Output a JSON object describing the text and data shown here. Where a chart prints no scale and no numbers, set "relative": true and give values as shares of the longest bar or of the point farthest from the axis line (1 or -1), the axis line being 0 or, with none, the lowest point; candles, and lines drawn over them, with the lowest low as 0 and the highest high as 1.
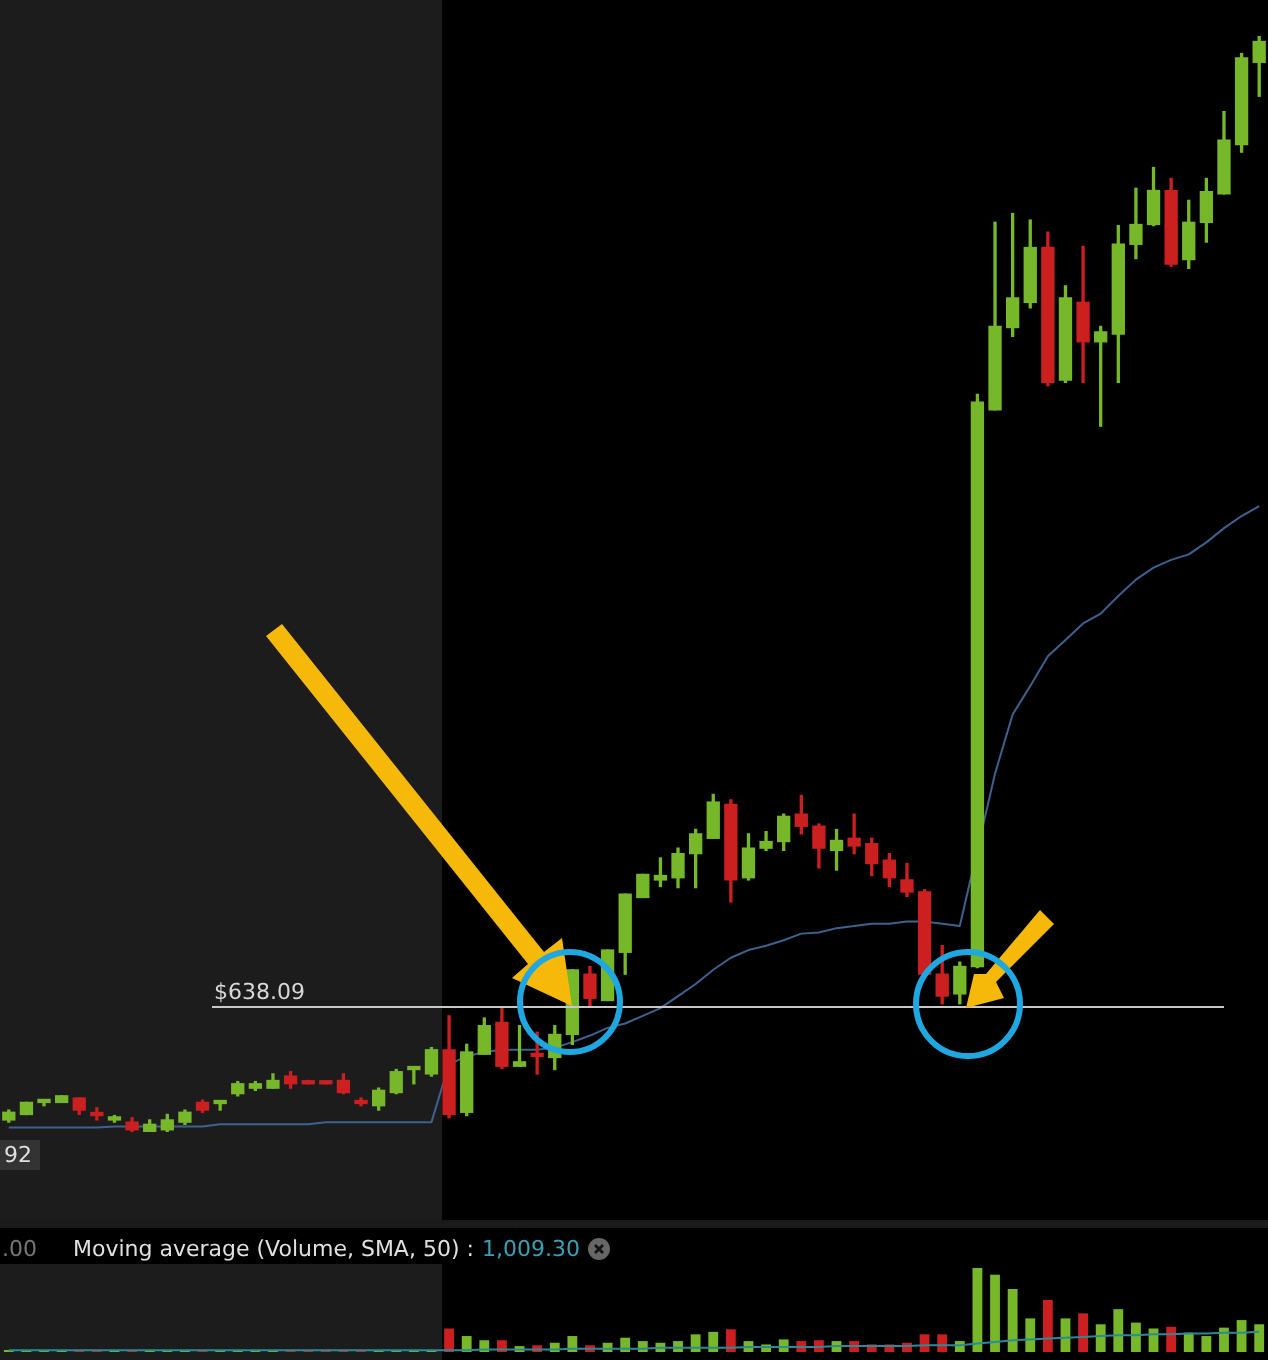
{
  "chart_data": [
    {
      "type": "candlestick",
      "relative": true,
      "legend": false,
      "grid": false,
      "categories": [
        null,
        null,
        null,
        null,
        null,
        null,
        null,
        null,
        null,
        null,
        null,
        null,
        null,
        null,
        null,
        null,
        null,
        null,
        null,
        null,
        null,
        null,
        null,
        null,
        null,
        null,
        null,
        null,
        null,
        null,
        null,
        null,
        null,
        null,
        null,
        null,
        null,
        null,
        null,
        null,
        null,
        null,
        null,
        null,
        null,
        null,
        null,
        null,
        null,
        null,
        null,
        null,
        null,
        null,
        null,
        null,
        null,
        null,
        null,
        null,
        null,
        null,
        null,
        null,
        null,
        null,
        null,
        null,
        null,
        null,
        null,
        null
      ],
      "ohlc": [
        [
          0.011,
          0.02,
          0.009,
          0.018
        ],
        [
          0.016,
          0.027,
          0.016,
          0.027
        ],
        [
          0.027,
          0.029,
          0.024,
          0.029
        ],
        [
          0.027,
          0.033,
          0.027,
          0.033
        ],
        [
          0.031,
          0.031,
          0.016,
          0.02
        ],
        [
          0.016,
          0.022,
          0.011,
          0.015
        ],
        [
          0.011,
          0.015,
          0.009,
          0.013
        ],
        [
          0.009,
          0.013,
          0.0,
          0.002
        ],
        [
          0.0,
          0.011,
          0.0,
          0.007
        ],
        [
          0.002,
          0.016,
          0.0,
          0.011
        ],
        [
          0.009,
          0.02,
          0.007,
          0.018
        ],
        [
          0.027,
          0.029,
          0.018,
          0.02
        ],
        [
          0.026,
          0.027,
          0.02,
          0.027
        ],
        [
          0.035,
          0.046,
          0.033,
          0.044
        ],
        [
          0.04,
          0.046,
          0.038,
          0.044
        ],
        [
          0.04,
          0.053,
          0.04,
          0.047
        ],
        [
          0.051,
          0.055,
          0.04,
          0.044
        ],
        [
          0.046,
          0.047,
          0.044,
          0.044
        ],
        [
          0.046,
          0.046,
          0.044,
          0.044
        ],
        [
          0.047,
          0.053,
          0.035,
          0.036
        ],
        [
          0.027,
          0.031,
          0.024,
          0.026
        ],
        [
          0.024,
          0.04,
          0.02,
          0.038
        ],
        [
          0.036,
          0.057,
          0.035,
          0.055
        ],
        [
          0.057,
          0.058,
          0.044,
          0.058
        ],
        [
          0.053,
          0.077,
          0.051,
          0.075
        ],
        [
          0.075,
          0.106,
          0.013,
          0.016
        ],
        [
          0.018,
          0.08,
          0.015,
          0.073
        ],
        [
          0.071,
          0.104,
          0.071,
          0.097
        ],
        [
          0.1,
          0.113,
          0.058,
          0.06
        ],
        [
          0.06,
          0.097,
          0.06,
          0.064
        ],
        [
          0.071,
          0.091,
          0.053,
          0.069
        ],
        [
          0.068,
          0.097,
          0.057,
          0.089
        ],
        [
          0.089,
          0.148,
          0.08,
          0.148
        ],
        [
          0.144,
          0.151,
          0.115,
          0.122
        ],
        [
          0.12,
          0.166,
          0.12,
          0.166
        ],
        [
          0.164,
          0.217,
          0.144,
          0.217
        ],
        [
          0.214,
          0.235,
          0.214,
          0.235
        ],
        [
          0.23,
          0.25,
          0.224,
          0.234
        ],
        [
          0.232,
          0.259,
          0.223,
          0.254
        ],
        [
          0.254,
          0.276,
          0.223,
          0.272
        ],
        [
          0.268,
          0.308,
          0.268,
          0.301
        ],
        [
          0.299,
          0.303,
          0.21,
          0.23
        ],
        [
          0.232,
          0.272,
          0.23,
          0.259
        ],
        [
          0.259,
          0.274,
          0.257,
          0.265
        ],
        [
          0.265,
          0.29,
          0.257,
          0.288
        ],
        [
          0.29,
          0.307,
          0.272,
          0.279
        ],
        [
          0.279,
          0.281,
          0.241,
          0.259
        ],
        [
          0.257,
          0.276,
          0.239,
          0.266
        ],
        [
          0.268,
          0.29,
          0.254,
          0.261
        ],
        [
          0.263,
          0.268,
          0.234,
          0.245
        ],
        [
          0.248,
          0.254,
          0.224,
          0.232
        ],
        [
          0.23,
          0.245,
          0.215,
          0.219
        ],
        [
          0.219,
          0.221,
          0.142,
          0.144
        ],
        [
          0.144,
          0.17,
          0.117,
          0.124
        ],
        [
          0.126,
          0.155,
          0.117,
          0.151
        ],
        [
          0.151,
          0.673,
          0.15,
          0.666
        ],
        [
          0.659,
          0.83,
          0.659,
          0.735
        ],
        [
          0.734,
          0.838,
          0.726,
          0.761
        ],
        [
          0.757,
          0.832,
          0.752,
          0.807
        ],
        [
          0.807,
          0.821,
          0.681,
          0.684
        ],
        [
          0.686,
          0.772,
          0.684,
          0.761
        ],
        [
          0.757,
          0.808,
          0.684,
          0.721
        ],
        [
          0.721,
          0.735,
          0.644,
          0.73
        ],
        [
          0.728,
          0.827,
          0.684,
          0.81
        ],
        [
          0.81,
          0.861,
          0.797,
          0.828
        ],
        [
          0.828,
          0.88,
          0.827,
          0.859
        ],
        [
          0.859,
          0.87,
          0.79,
          0.792
        ],
        [
          0.796,
          0.85,
          0.788,
          0.83
        ],
        [
          0.83,
          0.87,
          0.812,
          0.858
        ],
        [
          0.856,
          0.931,
          0.856,
          0.905
        ],
        [
          0.901,
          0.984,
          0.894,
          0.98
        ],
        [
          0.976,
          1.0,
          0.945,
          0.995
        ]
      ],
      "colors": [
        "#76b82a",
        "#76b82a",
        "#76b82a",
        "#76b82a",
        "#cc1f1f",
        "#cc1f1f",
        "#76b82a",
        "#cc1f1f",
        "#76b82a",
        "#76b82a",
        "#76b82a",
        "#cc1f1f",
        "#76b82a",
        "#76b82a",
        "#76b82a",
        "#76b82a",
        "#cc1f1f",
        "#cc1f1f",
        "#cc1f1f",
        "#cc1f1f",
        "#cc1f1f",
        "#76b82a",
        "#76b82a",
        "#76b82a",
        "#76b82a",
        "#cc1f1f",
        "#76b82a",
        "#76b82a",
        "#cc1f1f",
        "#76b82a",
        "#cc1f1f",
        "#76b82a",
        "#76b82a",
        "#cc1f1f",
        "#76b82a",
        "#76b82a",
        "#76b82a",
        "#76b82a",
        "#76b82a",
        "#76b82a",
        "#76b82a",
        "#cc1f1f",
        "#76b82a",
        "#76b82a",
        "#76b82a",
        "#cc1f1f",
        "#cc1f1f",
        "#76b82a",
        "#cc1f1f",
        "#cc1f1f",
        "#cc1f1f",
        "#cc1f1f",
        "#cc1f1f",
        "#cc1f1f",
        "#76b82a",
        "#76b82a",
        "#76b82a",
        "#76b82a",
        "#76b82a",
        "#cc1f1f",
        "#76b82a",
        "#cc1f1f",
        "#76b82a",
        "#76b82a",
        "#76b82a",
        "#76b82a",
        "#cc1f1f",
        "#76b82a",
        "#76b82a",
        "#76b82a",
        "#76b82a",
        "#76b82a"
      ],
      "series": [
        {
          "type": "line",
          "color": "#3d6290",
          "values": [
            0.004,
            0.004,
            0.004,
            0.004,
            0.004,
            0.004,
            0.005,
            0.005,
            0.005,
            0.005,
            0.005,
            0.005,
            0.007,
            0.007,
            0.007,
            0.007,
            0.007,
            0.007,
            0.009,
            0.009,
            0.009,
            0.009,
            0.009,
            0.009,
            0.009,
            0.062,
            0.069,
            0.073,
            0.075,
            0.075,
            0.075,
            0.077,
            0.082,
            0.088,
            0.095,
            0.099,
            0.106,
            0.113,
            0.124,
            0.135,
            0.148,
            0.159,
            0.166,
            0.17,
            0.175,
            0.181,
            0.182,
            0.186,
            0.188,
            0.19,
            0.19,
            0.192,
            0.192,
            0.19,
            0.188,
            null,
            0.327,
            0.381,
            0.407,
            0.434,
            0.449,
            0.464,
            0.473,
            0.489,
            0.504,
            0.515,
            0.522,
            0.527,
            0.538,
            0.551,
            0.562,
            0.571
          ]
        }
      ],
      "ref_lines": [
        {
          "axis": "y",
          "value": 0.115,
          "color": "#c8c8c8"
        }
      ],
      "annotations": [
        {
          "text": "$638.09",
          "y": 0.115
        },
        "92"
      ]
    },
    {
      "type": "bar",
      "relative": true,
      "legend": false,
      "grid": false,
      "title": "Moving average (Volume, SMA, 50) :",
      "subtitle": "1,009.30",
      "annotations": [
        ".00"
      ],
      "categories": [
        null,
        null,
        null,
        null,
        null,
        null,
        null,
        null,
        null,
        null,
        null,
        null,
        null,
        null,
        null,
        null,
        null,
        null,
        null,
        null,
        null,
        null,
        null,
        null,
        null,
        null,
        null,
        null,
        null,
        null,
        null,
        null,
        null,
        null,
        null,
        null,
        null,
        null,
        null,
        null,
        null,
        null,
        null,
        null,
        null,
        null,
        null,
        null,
        null,
        null,
        null,
        null,
        null,
        null,
        null,
        null,
        null,
        null,
        null,
        null,
        null,
        null,
        null,
        null,
        null,
        null,
        null,
        null,
        null,
        null,
        null,
        null
      ],
      "series": [
        {
          "colors": [
            "#76b82a",
            "#76b82a",
            "#76b82a",
            "#76b82a",
            "#cc1f1f",
            "#cc1f1f",
            "#76b82a",
            "#cc1f1f",
            "#76b82a",
            "#76b82a",
            "#76b82a",
            "#cc1f1f",
            "#76b82a",
            "#76b82a",
            "#76b82a",
            "#76b82a",
            "#cc1f1f",
            "#cc1f1f",
            "#cc1f1f",
            "#cc1f1f",
            "#cc1f1f",
            "#76b82a",
            "#76b82a",
            "#76b82a",
            "#76b82a",
            "#cc1f1f",
            "#76b82a",
            "#76b82a",
            "#cc1f1f",
            "#76b82a",
            "#cc1f1f",
            "#76b82a",
            "#76b82a",
            "#cc1f1f",
            "#76b82a",
            "#76b82a",
            "#76b82a",
            "#76b82a",
            "#76b82a",
            "#76b82a",
            "#76b82a",
            "#cc1f1f",
            "#76b82a",
            "#76b82a",
            "#76b82a",
            "#cc1f1f",
            "#cc1f1f",
            "#76b82a",
            "#cc1f1f",
            "#cc1f1f",
            "#cc1f1f",
            "#cc1f1f",
            "#cc1f1f",
            "#cc1f1f",
            "#76b82a",
            "#76b82a",
            "#76b82a",
            "#76b82a",
            "#76b82a",
            "#cc1f1f",
            "#76b82a",
            "#cc1f1f",
            "#76b82a",
            "#76b82a",
            "#76b82a",
            "#76b82a",
            "#cc1f1f",
            "#76b82a",
            "#76b82a",
            "#76b82a",
            "#76b82a",
            "#76b82a"
          ],
          "values": [
            0,
            0,
            0,
            0,
            0,
            0,
            0,
            0,
            0,
            0,
            0,
            0,
            0,
            0,
            0,
            0,
            0,
            0,
            0,
            0,
            0,
            0,
            0,
            0,
            0,
            0.28,
            0.19,
            0.14,
            0.14,
            0.07,
            0.08,
            0.11,
            0.19,
            0.08,
            0.11,
            0.17,
            0.13,
            0.11,
            0.13,
            0.21,
            0.24,
            0.27,
            0.13,
            0.09,
            0.15,
            0.13,
            0.14,
            0.13,
            0.13,
            0.09,
            0.09,
            0.11,
            0.21,
            0.21,
            0.13,
            1,
            0.92,
            0.75,
            0.4,
            0.62,
            0.4,
            0.46,
            0.33,
            0.51,
            0.35,
            0.28,
            0.3,
            0.23,
            0.19,
            0.29,
            0.38,
            0.33
          ]
        },
        {
          "type": "line",
          "color": "#2a8a9a",
          "values": [
            0.02,
            0.02,
            0.02,
            0.02,
            0.02,
            0.02,
            0.02,
            0.02,
            0.02,
            0.02,
            0.02,
            0.02,
            0.02,
            0.02,
            0.02,
            0.02,
            0.02,
            0.02,
            0.02,
            0.02,
            0.02,
            0.02,
            0.02,
            0.02,
            0.02,
            0.02,
            0.02,
            0.03,
            0.03,
            0.03,
            0.03,
            0.03,
            0.04,
            0.04,
            0.04,
            0.04,
            0.04,
            0.05,
            0.05,
            0.05,
            0.05,
            0.05,
            0.06,
            0.06,
            0.06,
            0.06,
            0.06,
            0.07,
            0.07,
            0.07,
            0.07,
            0.07,
            0.08,
            0.08,
            0.08,
            0.1,
            0.12,
            0.14,
            0.15,
            0.16,
            0.17,
            0.18,
            0.19,
            0.2,
            0.2,
            0.21,
            0.21,
            0.22,
            0.22,
            0.23,
            0.23,
            0.24
          ]
        }
      ]
    }
  ]
}
